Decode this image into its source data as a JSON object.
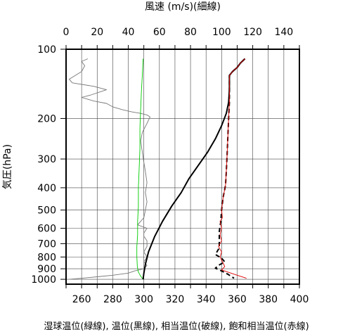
{
  "chart_data": {
    "type": "line",
    "title": "",
    "top_axis": {
      "label": "風速 (m/s)(細線)",
      "range": [
        0,
        150
      ],
      "ticks": [
        "0",
        "20",
        "40",
        "60",
        "80",
        "100",
        "120",
        "140"
      ]
    },
    "bottom_axis": {
      "label": "湿球温位(緑線), 温位(黒線), 相当温位(破線), 飽和相当温位(赤線)",
      "range": [
        250,
        400
      ],
      "ticks": [
        "260",
        "280",
        "300",
        "320",
        "340",
        "360",
        "380",
        "400"
      ]
    },
    "left_axis": {
      "label": "気圧(hPa)",
      "scale": "log",
      "range": [
        100,
        1050
      ],
      "ticks": [
        "100",
        "200",
        "300",
        "400",
        "500",
        "600",
        "700",
        "800",
        "900",
        "1000"
      ]
    },
    "grid": true,
    "series": [
      {
        "axis": "top",
        "color": "#777777",
        "style": "thin",
        "points": [
          [
            14,
            110
          ],
          [
            10,
            113
          ],
          [
            12,
            118
          ],
          [
            10,
            125
          ],
          [
            2,
            135
          ],
          [
            4,
            140
          ],
          [
            18,
            145
          ],
          [
            26,
            150
          ],
          [
            16,
            158
          ],
          [
            10,
            162
          ],
          [
            18,
            168
          ],
          [
            26,
            172
          ],
          [
            30,
            178
          ],
          [
            36,
            183
          ],
          [
            42,
            187
          ],
          [
            48,
            190
          ],
          [
            52,
            193
          ],
          [
            54,
            197
          ],
          [
            52,
            210
          ],
          [
            49,
            230
          ],
          [
            48,
            250
          ],
          [
            49,
            280
          ],
          [
            50,
            310
          ],
          [
            51,
            340
          ],
          [
            52,
            380
          ],
          [
            51,
            420
          ],
          [
            52,
            460
          ],
          [
            51,
            500
          ],
          [
            50,
            540
          ],
          [
            46,
            580
          ],
          [
            52,
            600
          ],
          [
            50,
            630
          ],
          [
            50,
            650
          ],
          [
            52,
            680
          ],
          [
            52,
            720
          ],
          [
            50,
            760
          ],
          [
            52,
            800
          ],
          [
            50,
            840
          ],
          [
            52,
            870
          ],
          [
            50,
            900
          ],
          [
            44,
            920
          ],
          [
            40,
            940
          ],
          [
            30,
            960
          ],
          [
            20,
            975
          ],
          [
            10,
            990
          ],
          [
            2,
            1000
          ]
        ]
      },
      {
        "axis": "bottom",
        "color": "#00cc00",
        "style": "thin",
        "points": [
          [
            299.5,
            110
          ],
          [
            299,
            130
          ],
          [
            298.5,
            150
          ],
          [
            298,
            180
          ],
          [
            297.5,
            220
          ],
          [
            297.5,
            270
          ],
          [
            297,
            330
          ],
          [
            296.5,
            400
          ],
          [
            296.5,
            480
          ],
          [
            296,
            560
          ],
          [
            296,
            640
          ],
          [
            295.5,
            720
          ],
          [
            295.5,
            800
          ],
          [
            295.8,
            880
          ],
          [
            296.5,
            930
          ],
          [
            298,
            970
          ],
          [
            299.5,
            1000
          ]
        ]
      },
      {
        "axis": "bottom",
        "color": "#000000",
        "style": "thick",
        "points": [
          [
            365,
            110
          ],
          [
            362,
            115
          ],
          [
            360,
            120
          ],
          [
            357,
            125
          ],
          [
            355,
            130
          ],
          [
            355,
            150
          ],
          [
            354.5,
            170
          ],
          [
            353,
            190
          ],
          [
            350,
            215
          ],
          [
            346,
            245
          ],
          [
            341,
            280
          ],
          [
            335,
            320
          ],
          [
            329,
            365
          ],
          [
            324,
            420
          ],
          [
            318,
            480
          ],
          [
            312,
            560
          ],
          [
            307,
            650
          ],
          [
            303,
            760
          ],
          [
            301,
            860
          ],
          [
            300,
            940
          ],
          [
            299.5,
            1000
          ]
        ]
      },
      {
        "axis": "bottom",
        "color": "#000000",
        "style": "dashed",
        "points": [
          [
            365,
            110
          ],
          [
            362,
            115
          ],
          [
            360,
            120
          ],
          [
            357,
            125
          ],
          [
            355,
            130
          ],
          [
            355,
            150
          ],
          [
            355,
            170
          ],
          [
            354.5,
            200
          ],
          [
            354,
            240
          ],
          [
            353.5,
            290
          ],
          [
            353,
            340
          ],
          [
            352.5,
            390
          ],
          [
            351,
            440
          ],
          [
            350,
            500
          ],
          [
            349.5,
            560
          ],
          [
            348.5,
            620
          ],
          [
            348.5,
            680
          ],
          [
            348.5,
            730
          ],
          [
            346,
            780
          ],
          [
            350,
            810
          ],
          [
            352,
            840
          ],
          [
            348,
            870
          ],
          [
            346,
            895
          ],
          [
            350,
            920
          ],
          [
            354,
            950
          ],
          [
            358,
            990
          ]
        ]
      },
      {
        "axis": "bottom",
        "color": "#dd0000",
        "style": "thin",
        "points": [
          [
            365,
            110
          ],
          [
            362,
            115
          ],
          [
            360,
            120
          ],
          [
            357,
            125
          ],
          [
            355,
            130
          ],
          [
            355,
            150
          ],
          [
            355,
            170
          ],
          [
            354.5,
            200
          ],
          [
            354,
            240
          ],
          [
            353.5,
            290
          ],
          [
            353,
            340
          ],
          [
            352.5,
            390
          ],
          [
            351,
            440
          ],
          [
            350,
            500
          ],
          [
            350.5,
            540
          ],
          [
            349,
            560
          ],
          [
            350,
            600
          ],
          [
            349,
            640
          ],
          [
            350,
            680
          ],
          [
            348,
            720
          ],
          [
            350,
            760
          ],
          [
            349,
            800
          ],
          [
            351,
            850
          ],
          [
            352,
            880
          ],
          [
            350,
            910
          ],
          [
            354,
            930
          ],
          [
            360,
            960
          ],
          [
            366,
            990
          ]
        ]
      }
    ]
  }
}
